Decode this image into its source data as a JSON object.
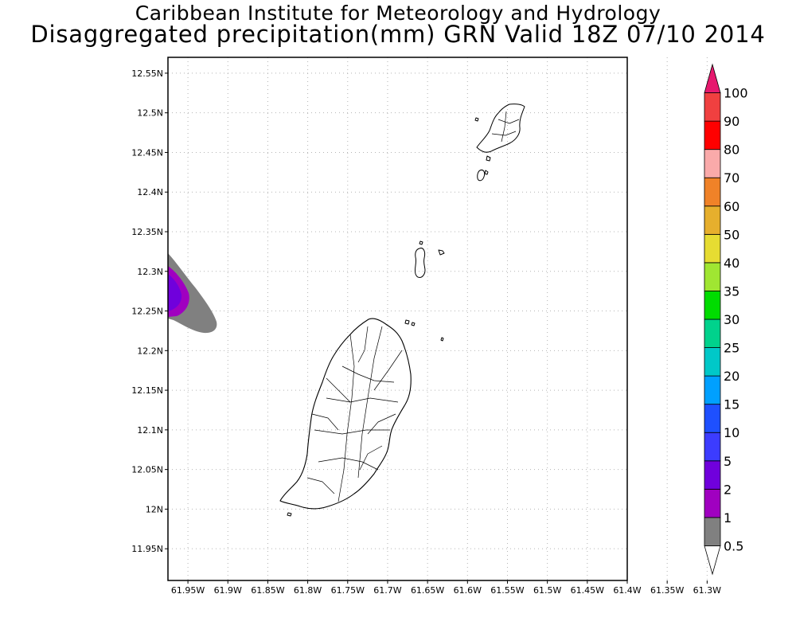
{
  "title": {
    "line1": "Caribbean Institute for Meteorology and Hydrology",
    "line2": "Disaggregated precipitation(mm) GRN Valid 18Z 07/10 2014"
  },
  "map": {
    "lat_ticks": [
      "12.55N",
      "12.5N",
      "12.45N",
      "12.4N",
      "12.35N",
      "12.3N",
      "12.25N",
      "12.2N",
      "12.15N",
      "12.1N",
      "12.05N",
      "12N",
      "11.95N"
    ],
    "lat_values": [
      12.55,
      12.5,
      12.45,
      12.4,
      12.35,
      12.3,
      12.25,
      12.2,
      12.15,
      12.1,
      12.05,
      12.0,
      11.95
    ],
    "lon_ticks": [
      "61.95W",
      "61.9W",
      "61.85W",
      "61.8W",
      "61.75W",
      "61.7W",
      "61.65W",
      "61.6W",
      "61.55W",
      "61.5W",
      "61.45W",
      "61.4W",
      "61.35W",
      "61.3W"
    ],
    "lon_values": [
      -61.95,
      -61.9,
      -61.85,
      -61.8,
      -61.75,
      -61.7,
      -61.65,
      -61.6,
      -61.55,
      -61.5,
      -61.45,
      -61.4,
      -61.35,
      -61.3
    ],
    "lon_range": [
      -61.975,
      -61.4
    ],
    "lat_range": [
      11.91,
      12.57
    ],
    "grid": "dotted",
    "features": [
      "Grenada",
      "Carriacou",
      "Petite Martinique",
      "Grenadine islets"
    ],
    "precip_area": {
      "location": "west edge near 12.27N 61.97W",
      "max_class": "2-5",
      "outer_class": "0.5-1"
    }
  },
  "colorbar": {
    "levels": [
      "0.5",
      "1",
      "2",
      "5",
      "10",
      "15",
      "20",
      "25",
      "30",
      "35",
      "40",
      "50",
      "60",
      "70",
      "80",
      "90",
      "100"
    ],
    "colors": [
      "#ffffff",
      "#808080",
      "#a000c0",
      "#7000dc",
      "#3c3cff",
      "#1e50ff",
      "#00a0ff",
      "#00c8c8",
      "#00d28c",
      "#00dc00",
      "#a0e632",
      "#e6dc32",
      "#e6af2d",
      "#f08228",
      "#faaaaa",
      "#ff0000",
      "#f04040",
      "#e6196e"
    ]
  }
}
